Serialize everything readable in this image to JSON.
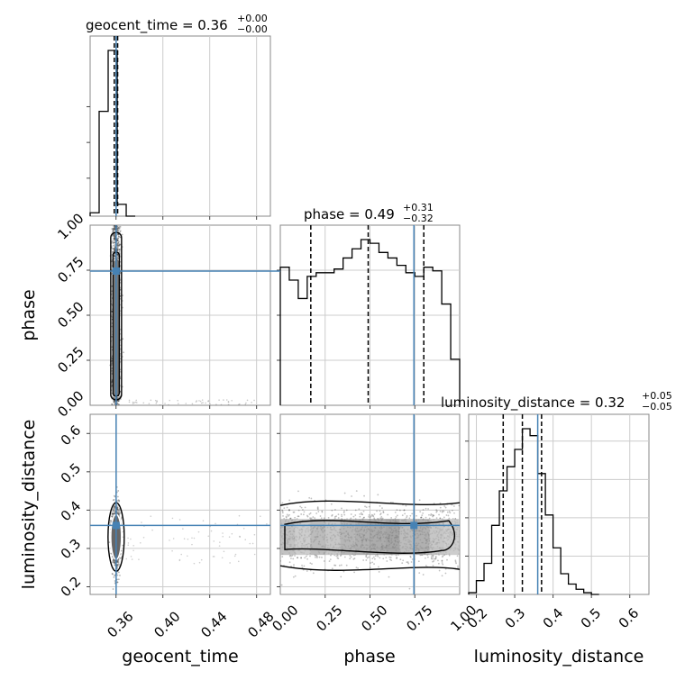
{
  "chart_data": {
    "type": "corner",
    "parameters": [
      "geocent_time",
      "phase",
      "luminosity_distance"
    ],
    "truths": {
      "geocent_time": 0.3601,
      "phase": 0.745,
      "luminosity_distance": 0.36
    },
    "titles": [
      {
        "param": "geocent_time",
        "text": "geocent_time = 0.36",
        "sup": "+0.00",
        "sub": "−0.00"
      },
      {
        "param": "phase",
        "text": "phase = 0.49",
        "sup": "+0.31",
        "sub": "−0.32"
      },
      {
        "param": "luminosity_distance",
        "text": "luminosity_distance = 0.32",
        "sup": "+0.05",
        "sub": "−0.05"
      }
    ],
    "axis_labels": {
      "x": [
        "geocent_time",
        "phase",
        "luminosity_distance"
      ],
      "y": [
        "phase",
        "luminosity_distance"
      ]
    },
    "ticks": {
      "geocent_time": [
        "0.36",
        "0.40",
        "0.44",
        "0.48"
      ],
      "phase": [
        "0.00",
        "0.25",
        "0.50",
        "0.75",
        "1.00"
      ],
      "luminosity_distance": [
        "0.2",
        "0.3",
        "0.4",
        "0.5",
        "0.6"
      ]
    },
    "ranges": {
      "geocent_time": [
        0.3379,
        0.4918
      ],
      "phase": [
        0.0,
        1.0
      ],
      "luminosity_distance": [
        0.18,
        0.65
      ]
    },
    "grid": true,
    "quantiles": {
      "geocent_time": [
        0.3585,
        0.3601,
        0.3614
      ],
      "phase": [
        0.17,
        0.49,
        0.8
      ],
      "luminosity_distance": [
        0.27,
        0.32,
        0.37
      ]
    },
    "hist_geocent_time": {
      "edges": [
        0.3379,
        0.3456,
        0.3533,
        0.361,
        0.3687,
        0.3764
      ],
      "counts": [
        0.02,
        0.62,
        0.98,
        0.07,
        0.0
      ]
    },
    "hist_phase": {
      "edges": [
        0.0,
        0.05,
        0.1,
        0.15,
        0.2,
        0.25,
        0.3,
        0.35,
        0.4,
        0.45,
        0.5,
        0.55,
        0.6,
        0.65,
        0.7,
        0.75,
        0.8,
        0.85,
        0.9,
        0.95,
        1.0
      ],
      "counts": [
        0.75,
        0.68,
        0.58,
        0.7,
        0.72,
        0.72,
        0.74,
        0.8,
        0.85,
        0.9,
        0.88,
        0.83,
        0.8,
        0.76,
        0.72,
        0.7,
        0.75,
        0.73,
        0.55,
        0.25
      ]
    },
    "hist_luminosity_distance": {
      "edges": [
        0.18,
        0.2,
        0.22,
        0.24,
        0.26,
        0.28,
        0.3,
        0.32,
        0.34,
        0.36,
        0.38,
        0.4,
        0.42,
        0.44,
        0.46,
        0.48,
        0.5,
        0.52
      ],
      "counts": [
        0.01,
        0.08,
        0.18,
        0.4,
        0.6,
        0.74,
        0.84,
        0.96,
        0.92,
        0.7,
        0.46,
        0.27,
        0.12,
        0.06,
        0.03,
        0.01,
        0.0
      ]
    },
    "scatter_geocent_phase": {
      "x_center": 0.3601,
      "x_spread": 0.0018,
      "y_range": [
        0.0,
        1.0
      ]
    },
    "scatter_geocent_distance": {
      "x_center": 0.3601,
      "x_spread": 0.0018,
      "y_center": 0.33,
      "y_spread": 0.04
    },
    "scatter_phase_distance": {
      "x_range": [
        0.0,
        1.0
      ],
      "y_center": 0.33,
      "y_spread": 0.04
    },
    "truth_color": "#4682b4",
    "contour_color": "#000000"
  }
}
